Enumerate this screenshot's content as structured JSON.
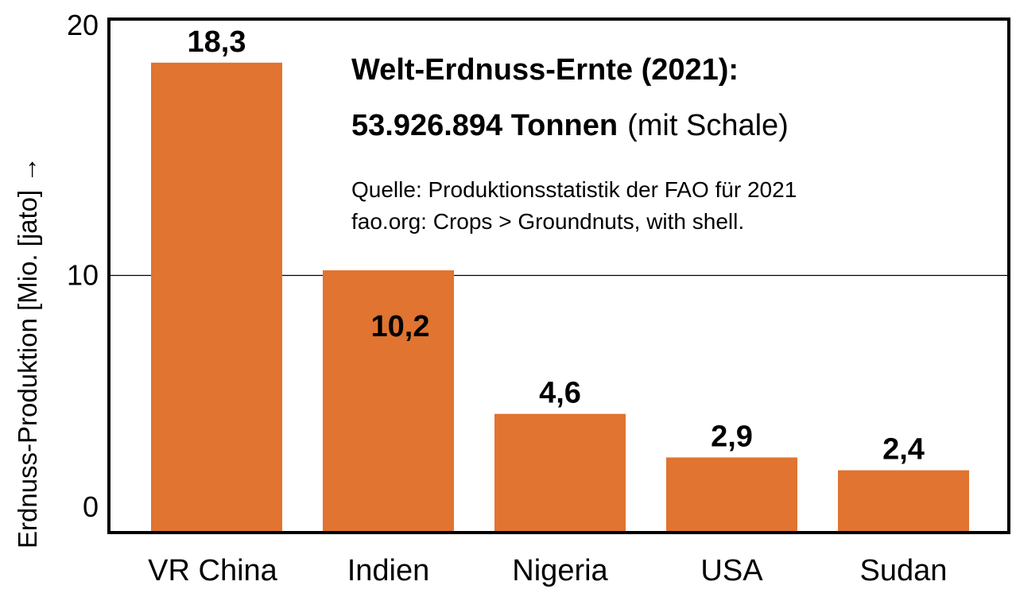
{
  "chart_data": {
    "type": "bar",
    "title_line1": "Welt-Erdnuss-Ernte (2021):",
    "title_line2_bold": "53.926.894 Tonnen",
    "title_line2_normal": "(mit Schale)",
    "source_line1": "Quelle: Produktionsstatistik der FAO für 2021",
    "source_line2": "fao.org: Crops > Groundnuts, with shell.",
    "ylabel": "Erdnuss-Produktion [Mio. [jato] →",
    "xlabel": "",
    "ylim": [
      0,
      20
    ],
    "yticks": [
      0,
      10,
      20
    ],
    "ytick_labels": [
      "0",
      "10",
      "20"
    ],
    "grid": true,
    "categories": [
      "VR China",
      "Indien",
      "Nigeria",
      "USA",
      "Sudan"
    ],
    "values": [
      18.3,
      10.2,
      4.6,
      2.9,
      2.4
    ],
    "data_labels": [
      "18,3",
      "10,2",
      "4,6",
      "2,9",
      "2,4"
    ],
    "bar_color": "#e07430"
  }
}
